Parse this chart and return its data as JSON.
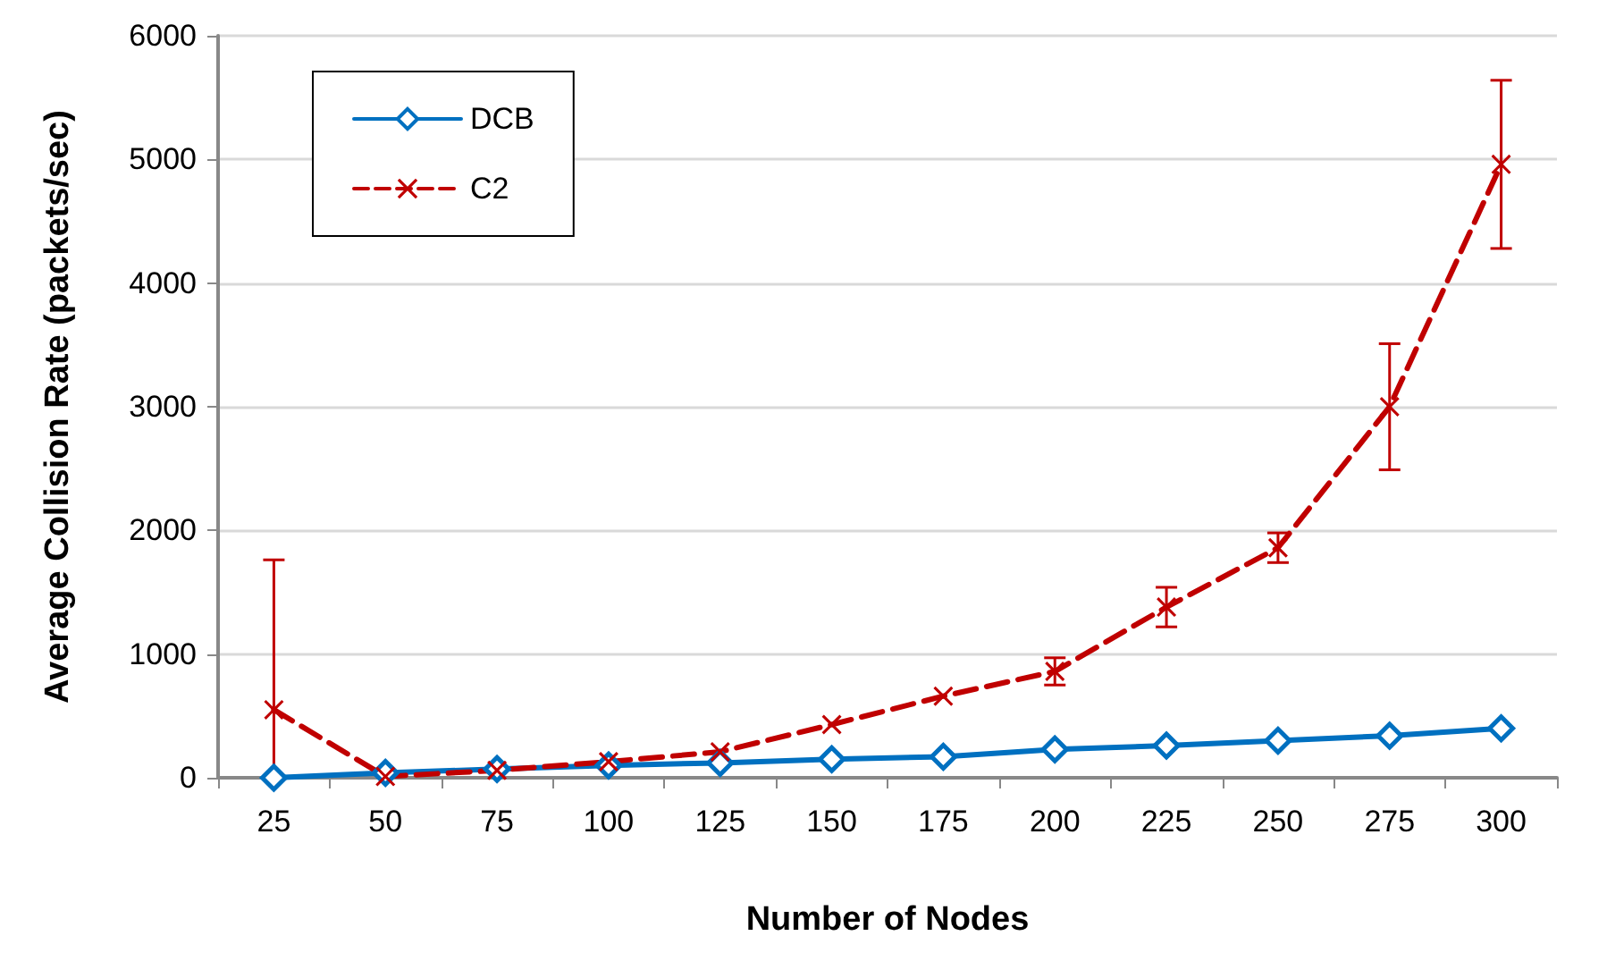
{
  "chart_data": {
    "type": "line",
    "xlabel": "Number of Nodes",
    "ylabel": "Average Collision Rate (packets/sec)",
    "categories": [
      "25",
      "50",
      "75",
      "100",
      "125",
      "150",
      "175",
      "200",
      "225",
      "250",
      "275",
      "300"
    ],
    "ylim": [
      0,
      6000
    ],
    "yticks": [
      0,
      1000,
      2000,
      3000,
      4000,
      5000,
      6000
    ],
    "grid": "y",
    "legend": "top left",
    "series": [
      {
        "name": "DCB",
        "color": "#0070c0",
        "marker": "diamond",
        "line_style": "solid",
        "values": [
          0,
          40,
          70,
          100,
          120,
          150,
          170,
          230,
          260,
          300,
          340,
          400
        ]
      },
      {
        "name": "C2",
        "color": "#c00000",
        "marker": "cross",
        "line_style": "dashed",
        "values": [
          550,
          10,
          60,
          130,
          210,
          430,
          660,
          860,
          1380,
          1860,
          3000,
          4960
        ],
        "errors": [
          [
            0,
            1762
          ],
          null,
          null,
          null,
          null,
          null,
          null,
          110,
          160,
          120,
          510,
          680
        ]
      }
    ]
  }
}
